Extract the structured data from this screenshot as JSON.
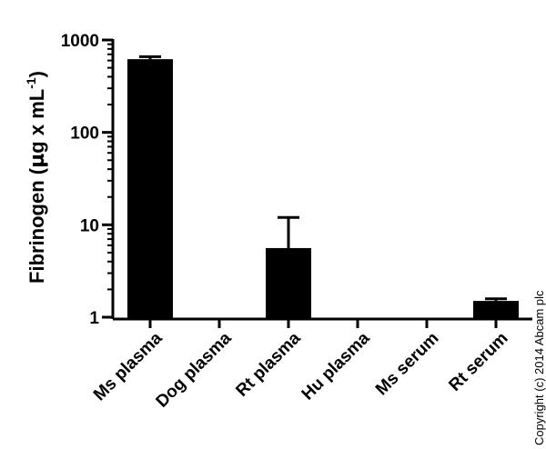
{
  "chart_data": {
    "type": "bar",
    "scale": "log",
    "categories": [
      "Ms plasma",
      "Dog plasma",
      "Rt plasma",
      "Hu plasma",
      "Ms serum",
      "Rt serum"
    ],
    "values": [
      620,
      null,
      5.6,
      null,
      null,
      1.5
    ],
    "error_upper": [
      660,
      null,
      12,
      null,
      null,
      1.58
    ],
    "ylabel_prefix": "Fibrinogen (",
    "ylabel_mu": "µ",
    "ylabel_mid": "g x mL",
    "ylabel_sup": "-1",
    "ylabel_suffix": ")",
    "ylim": [
      1,
      1000
    ],
    "yticks": [
      1,
      10,
      100,
      1000
    ],
    "ytick_labels": [
      "1",
      "10",
      "100",
      "1000"
    ],
    "bar_color": "#000000",
    "grid": false
  },
  "copyright": "Copyright (c) 2014 Abcam plc"
}
